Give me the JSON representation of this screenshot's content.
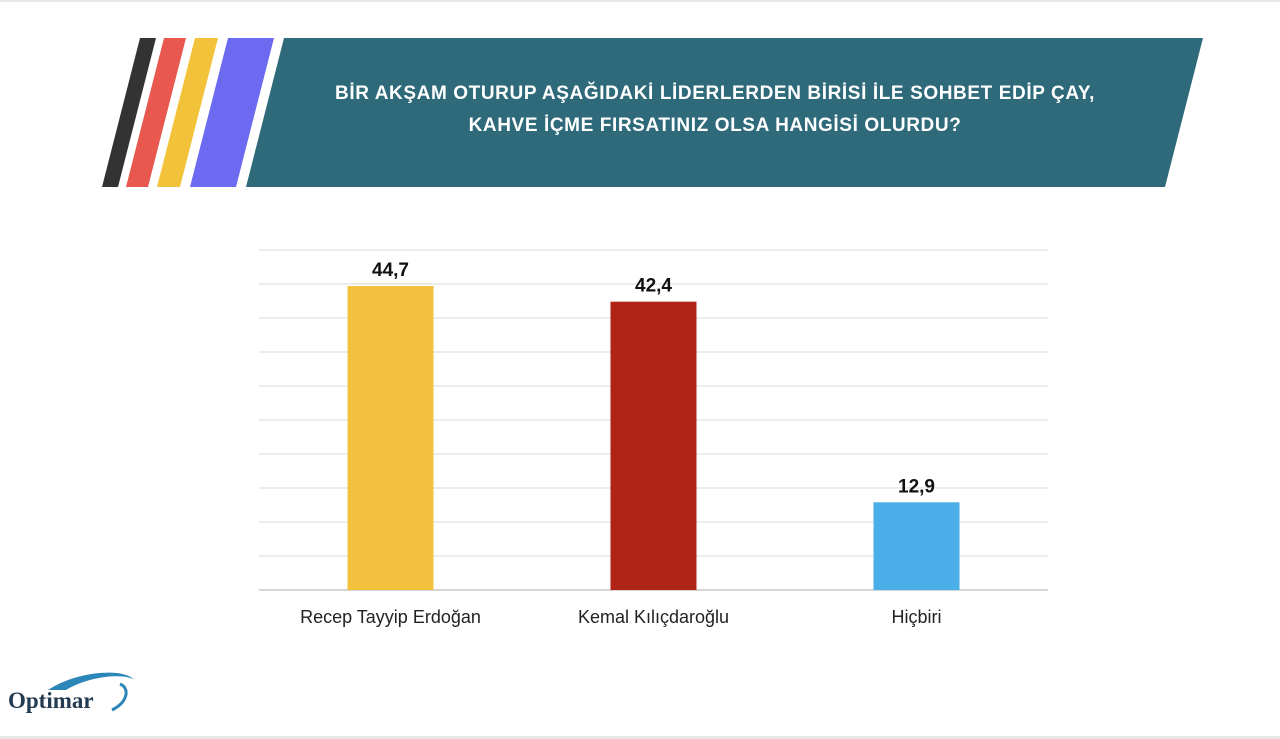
{
  "header": {
    "title_line1": "BİR AKŞAM OTURUP AŞAĞIDAKİ LİDERLERDEN BİRİSİ İLE SOHBET EDİP ÇAY,",
    "title_line2": "KAHVE İÇME FIRSATINIZ OLSA HANGİSİ OLURDU?",
    "banner_color": "#2e6a7a",
    "stripe_colors": [
      "#333333",
      "#e8584f",
      "#f2c23b",
      "#6b6af0"
    ]
  },
  "chart_data": {
    "type": "bar",
    "title": "BİR AKŞAM OTURUP AŞAĞIDAKİ LİDERLERDEN BİRİSİ İLE SOHBET EDİP ÇAY, KAHVE İÇME FIRSATINIZ OLSA HANGİSİ OLURDU?",
    "categories": [
      "Recep Tayyip Erdoğan",
      "Kemal Kılıçdaroğlu",
      "Hiçbiri"
    ],
    "values": [
      44.7,
      42.4,
      12.9
    ],
    "value_labels": [
      "44,7",
      "42,4",
      "12,9"
    ],
    "colors": [
      "#f2c13e",
      "#b02418",
      "#4aaee8"
    ],
    "xlabel": "",
    "ylabel": "",
    "ylim": [
      0,
      50
    ],
    "grid": true,
    "legend": "none"
  },
  "logo": {
    "text": "Optimar",
    "color": "#243c52"
  }
}
